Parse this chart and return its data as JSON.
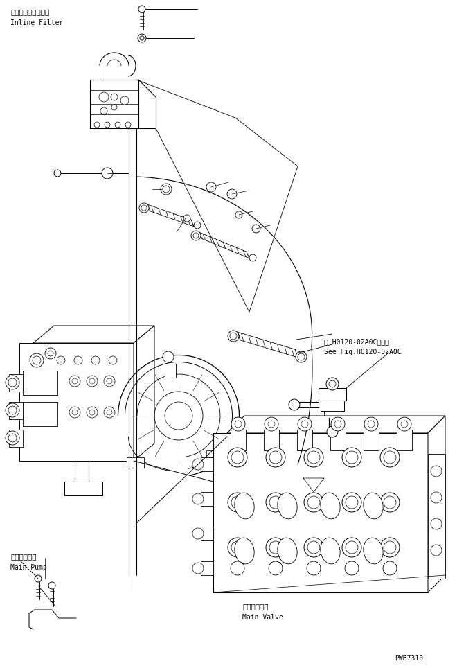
{
  "bg_color": "#ffffff",
  "line_color": "#000000",
  "fig_width": 6.73,
  "fig_height": 9.64,
  "dpi": 100,
  "labels": {
    "inline_filter_jp": "インラインフィルタ",
    "inline_filter_en": "Inline Filter",
    "main_pump_jp": "メインポンプ",
    "main_pump_en": "Main Pump",
    "main_valve_jp": "メインバルブ",
    "main_valve_en": "Main Valve",
    "see_fig_jp": "第 H0120-02A0C図参照",
    "see_fig_en": "See Fig.H0120-02A0C",
    "pwb": "PWB7310"
  },
  "font_size_label": 7,
  "font_size_pwb": 7,
  "font_family": "DejaVu Sans Mono"
}
